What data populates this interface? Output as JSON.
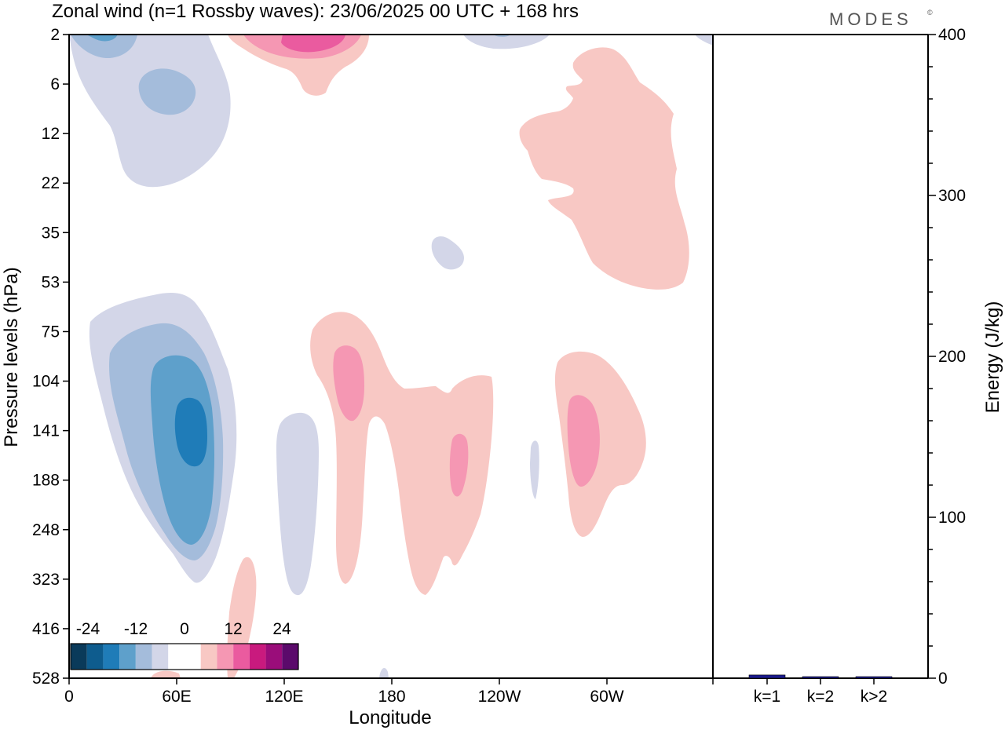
{
  "title": "Zonal wind (n=1 Rossby waves):  23/06/2025  00 UTC  + 168 hrs",
  "logo": {
    "text": "MODES",
    "mark": "©"
  },
  "colors": {
    "scale": [
      "#0a3a5a",
      "#0e5c8e",
      "#1f7cb8",
      "#5ea0cb",
      "#a4bcdb",
      "#d3d6e8",
      "#ffffff",
      "#ffffff",
      "#f8c8c4",
      "#f597b3",
      "#ea5b9f",
      "#c91a7e",
      "#9a0d7a",
      "#5b0a6b"
    ],
    "negative_light": "#d3d6e8",
    "negative_mid": "#a4bcdb",
    "negative_strong": "#5ea0cb",
    "negative_core": "#1f7cb8",
    "positive_light": "#f8c8c4",
    "positive_mid": "#f597b3",
    "positive_strong": "#ea5b9f",
    "bar": "#1a1a8c"
  },
  "chart_data": [
    {
      "type": "heatmap",
      "xlabel": "Longitude",
      "ylabel": "Pressure levels (hPa)",
      "x_ticks": [
        "0",
        "60E",
        "120E",
        "180",
        "120W",
        "60W"
      ],
      "x_tick_values": [
        0,
        60,
        120,
        180,
        240,
        300
      ],
      "xlim": [
        0,
        360
      ],
      "y_ticks": [
        "2",
        "6",
        "12",
        "22",
        "35",
        "53",
        "75",
        "104",
        "141",
        "188",
        "248",
        "323",
        "416",
        "528"
      ],
      "colorbar": {
        "tick_labels": [
          "-24",
          "-12",
          "0",
          "12",
          "24"
        ],
        "levels": [
          -28,
          -24,
          -20,
          -16,
          -12,
          -8,
          -4,
          0,
          4,
          8,
          12,
          16,
          20,
          24,
          28
        ]
      }
    },
    {
      "type": "bar",
      "ylabel": "Energy (J/kg)",
      "ylim": [
        0,
        400
      ],
      "y_ticks": [
        "0",
        "100",
        "200",
        "300",
        "400"
      ],
      "categories": [
        "k=1",
        "k=2",
        "k>2"
      ],
      "values": [
        2,
        0.5,
        0.8
      ]
    }
  ]
}
